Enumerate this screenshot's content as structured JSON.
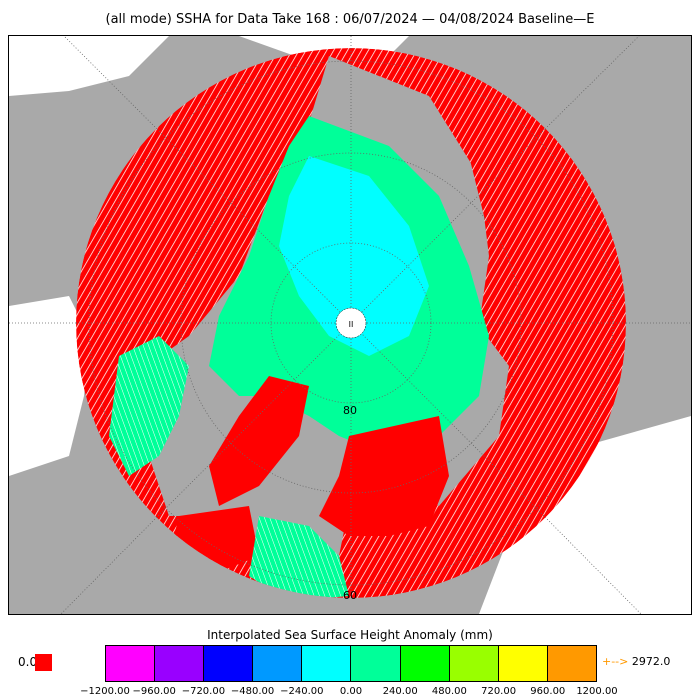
{
  "title": "(all mode) SSHA for Data Take 168 : 06/07/2024 — 04/08/2024 Baseline—E",
  "map": {
    "projection": "north-polar-stereographic",
    "lat_labels": [
      "80",
      "60"
    ],
    "pole_marker": "II",
    "colors": {
      "land": "#a9a9a9",
      "coastline_fill": "#ffffff",
      "background": "#ffffff",
      "track_high": "#ff0000",
      "track_ocean": "#00ff99",
      "track_cyan": "#00ffff"
    }
  },
  "colorbar": {
    "title": "Interpolated Sea Surface Height Anomaly (mm)",
    "colors": [
      "#ff00ff",
      "#9900ff",
      "#0000ff",
      "#0099ff",
      "#00ffff",
      "#00ff99",
      "#00ff00",
      "#99ff00",
      "#ffff00",
      "#ff9900"
    ],
    "ticks": [
      "−1200.00",
      "−960.00",
      "−720.00",
      "−480.00",
      "−240.00",
      "0.00",
      "240.00",
      "480.00",
      "720.00",
      "960.00",
      "1200.00"
    ]
  },
  "zero_label": "0.0",
  "max_label": {
    "arrow": "+-->",
    "value": "2972.0"
  }
}
